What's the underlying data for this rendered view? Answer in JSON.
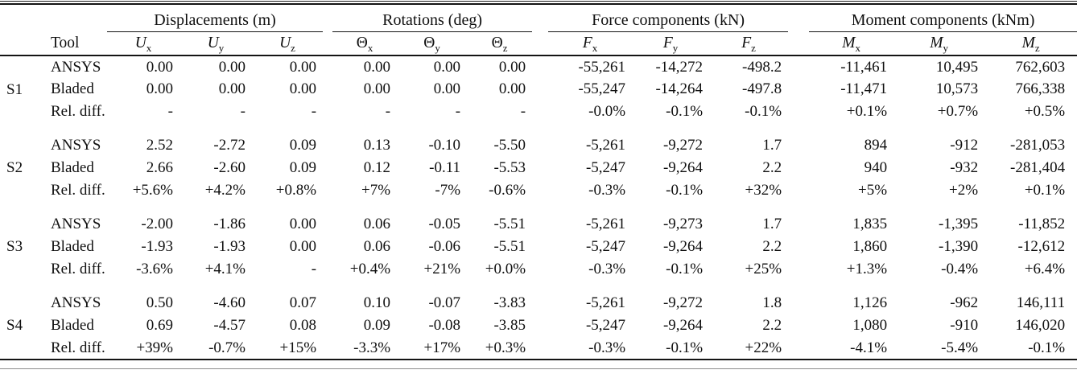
{
  "page": {
    "background": "#ffffff",
    "text_color": "#101010",
    "rule_color": "#141414"
  },
  "table": {
    "tool_header": "Tool",
    "groups": [
      {
        "label": "Displacements (m)",
        "cols": [
          {
            "key": "ux",
            "base": "U",
            "sub": "x",
            "italic": true
          },
          {
            "key": "uy",
            "base": "U",
            "sub": "y",
            "italic": true
          },
          {
            "key": "uz",
            "base": "U",
            "sub": "z",
            "italic": true
          }
        ]
      },
      {
        "label": "Rotations (deg)",
        "cols": [
          {
            "key": "theta-x",
            "base": "Θ",
            "sub": "x",
            "italic": false
          },
          {
            "key": "theta-y",
            "base": "Θ",
            "sub": "y",
            "italic": false
          },
          {
            "key": "theta-z",
            "base": "Θ",
            "sub": "z",
            "italic": false
          }
        ]
      },
      {
        "label": "Force components (kN)",
        "cols": [
          {
            "key": "fx",
            "base": "F",
            "sub": "x",
            "italic": true
          },
          {
            "key": "fy",
            "base": "F",
            "sub": "y",
            "italic": true
          },
          {
            "key": "fz",
            "base": "F",
            "sub": "z",
            "italic": true
          }
        ]
      },
      {
        "label": "Moment components (kNm)",
        "cols": [
          {
            "key": "mx",
            "base": "M",
            "sub": "x",
            "italic": true
          },
          {
            "key": "my",
            "base": "M",
            "sub": "y",
            "italic": true
          },
          {
            "key": "mz",
            "base": "M",
            "sub": "z",
            "italic": true
          }
        ]
      }
    ],
    "blocks": [
      {
        "id": "S1",
        "rows": [
          {
            "tool": "ANSYS",
            "values": [
              "0.00",
              "0.00",
              "0.00",
              "0.00",
              "0.00",
              "0.00",
              "-55,261",
              "-14,272",
              "-498.2",
              "-11,461",
              "10,495",
              "762,603"
            ]
          },
          {
            "tool": "Bladed",
            "values": [
              "0.00",
              "0.00",
              "0.00",
              "0.00",
              "0.00",
              "0.00",
              "-55,247",
              "-14,264",
              "-497.8",
              "-11,471",
              "10,573",
              "766,338"
            ]
          },
          {
            "tool": "Rel. diff.",
            "values": [
              "-",
              "-",
              "-",
              "-",
              "-",
              "-",
              "-0.0%",
              "-0.1%",
              "-0.1%",
              "+0.1%",
              "+0.7%",
              "+0.5%"
            ]
          }
        ]
      },
      {
        "id": "S2",
        "rows": [
          {
            "tool": "ANSYS",
            "values": [
              "2.52",
              "-2.72",
              "0.09",
              "0.13",
              "-0.10",
              "-5.50",
              "-5,261",
              "-9,272",
              "1.7",
              "894",
              "-912",
              "-281,053"
            ]
          },
          {
            "tool": "Bladed",
            "values": [
              "2.66",
              "-2.60",
              "0.09",
              "0.12",
              "-0.11",
              "-5.53",
              "-5,247",
              "-9,264",
              "2.2",
              "940",
              "-932",
              "-281,404"
            ]
          },
          {
            "tool": "Rel. diff.",
            "values": [
              "+5.6%",
              "+4.2%",
              "+0.8%",
              "+7%",
              "-7%",
              "-0.6%",
              "-0.3%",
              "-0.1%",
              "+32%",
              "+5%",
              "+2%",
              "+0.1%"
            ]
          }
        ]
      },
      {
        "id": "S3",
        "rows": [
          {
            "tool": "ANSYS",
            "values": [
              "-2.00",
              "-1.86",
              "0.00",
              "0.06",
              "-0.05",
              "-5.51",
              "-5,261",
              "-9,273",
              "1.7",
              "1,835",
              "-1,395",
              "-11,852"
            ]
          },
          {
            "tool": "Bladed",
            "values": [
              "-1.93",
              "-1.93",
              "0.00",
              "0.06",
              "-0.06",
              "-5.51",
              "-5,247",
              "-9,264",
              "2.2",
              "1,860",
              "-1,390",
              "-12,612"
            ]
          },
          {
            "tool": "Rel. diff.",
            "values": [
              "-3.6%",
              "+4.1%",
              "-",
              "+0.4%",
              "+21%",
              "+0.0%",
              "-0.3%",
              "-0.1%",
              "+25%",
              "+1.3%",
              "-0.4%",
              "+6.4%"
            ]
          }
        ]
      },
      {
        "id": "S4",
        "rows": [
          {
            "tool": "ANSYS",
            "values": [
              "0.50",
              "-4.60",
              "0.07",
              "0.10",
              "-0.07",
              "-3.83",
              "-5,261",
              "-9,272",
              "1.8",
              "1,126",
              "-962",
              "146,111"
            ]
          },
          {
            "tool": "Bladed",
            "values": [
              "0.69",
              "-4.57",
              "0.08",
              "0.09",
              "-0.08",
              "-3.85",
              "-5,247",
              "-9,264",
              "2.2",
              "1,080",
              "-910",
              "146,020"
            ]
          },
          {
            "tool": "Rel. diff.",
            "values": [
              "+39%",
              "-0.7%",
              "+15%",
              "-3.3%",
              "+17%",
              "+0.3%",
              "-0.3%",
              "-0.1%",
              "+22%",
              "-4.1%",
              "-5.4%",
              "-0.1%"
            ]
          }
        ]
      }
    ]
  }
}
